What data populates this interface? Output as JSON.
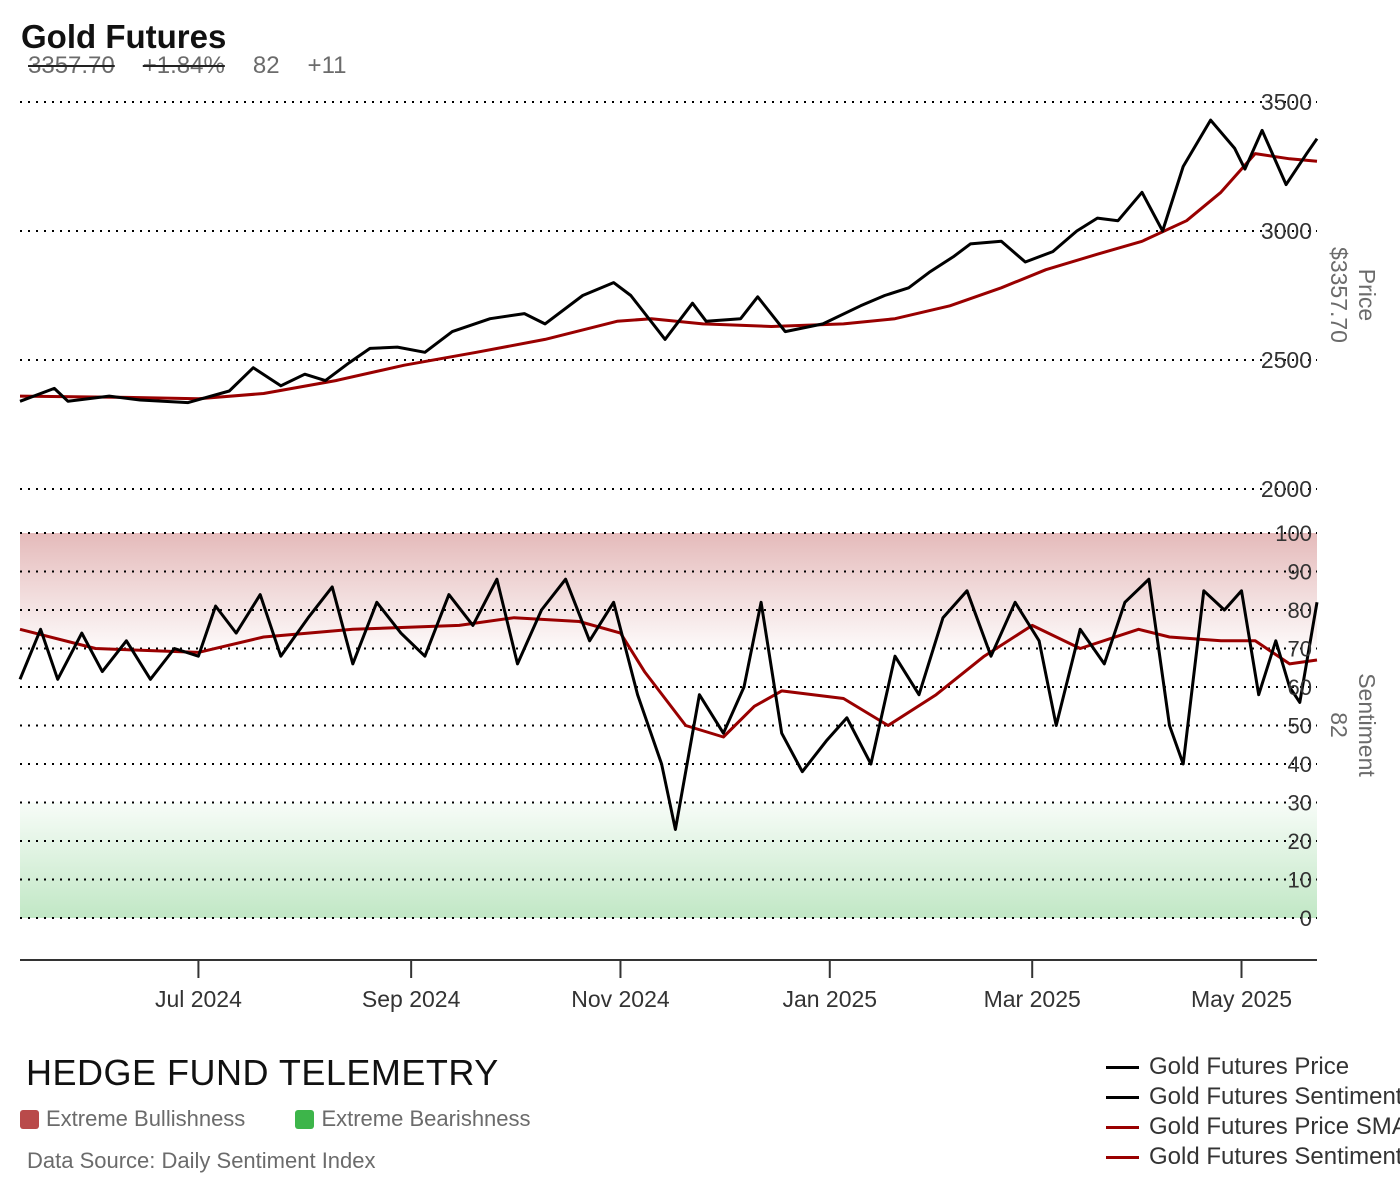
{
  "header": {
    "title": "Gold Futures",
    "price": "3357.70",
    "change": "+1.84%",
    "sentiment": "82",
    "sentiment_change": "+11"
  },
  "footer": {
    "brand": "HEDGE FUND TELEMETRY",
    "zone_bull_label": "Extreme Bullishness",
    "zone_bear_label": "Extreme Bearishness",
    "source": "Data Source: Daily Sentiment Index"
  },
  "legend": [
    {
      "label": "Gold Futures Price",
      "color": "#000000"
    },
    {
      "label": "Gold Futures Sentiment",
      "color": "#000000"
    },
    {
      "label": "Gold Futures Price SMA",
      "color": "#990000"
    },
    {
      "label": "Gold Futures Sentiment SMA",
      "color": "#990000"
    }
  ],
  "colors": {
    "price": "#000000",
    "sentiment": "#000000",
    "sma": "#990000",
    "bull_zone": "#b94a4a",
    "bear_zone": "#3db54a"
  },
  "chart_data": {
    "type": "line",
    "x_start": "2024-05-10",
    "x_end": "2025-05-23",
    "x_ticks": [
      "Jul 2024",
      "Sep 2024",
      "Nov 2024",
      "Jan 2025",
      "Mar 2025",
      "May 2025"
    ],
    "x_tick_dates": [
      "2024-07-01",
      "2024-09-01",
      "2024-11-01",
      "2025-01-01",
      "2025-03-01",
      "2025-05-01"
    ],
    "price_panel": {
      "ylabel": "Price",
      "last_value_label": "$3357.70",
      "ylim": [
        2000,
        3500
      ],
      "yticks": [
        2000,
        2500,
        3000,
        3500
      ],
      "series": [
        {
          "name": "Gold Futures Price",
          "color": "#000000",
          "points": [
            [
              "2024-05-10",
              2340
            ],
            [
              "2024-05-20",
              2390
            ],
            [
              "2024-05-24",
              2340
            ],
            [
              "2024-06-05",
              2360
            ],
            [
              "2024-06-14",
              2345
            ],
            [
              "2024-06-28",
              2335
            ],
            [
              "2024-07-10",
              2380
            ],
            [
              "2024-07-17",
              2470
            ],
            [
              "2024-07-25",
              2400
            ],
            [
              "2024-08-01",
              2445
            ],
            [
              "2024-08-07",
              2420
            ],
            [
              "2024-08-14",
              2490
            ],
            [
              "2024-08-20",
              2545
            ],
            [
              "2024-08-28",
              2550
            ],
            [
              "2024-09-05",
              2530
            ],
            [
              "2024-09-13",
              2610
            ],
            [
              "2024-09-24",
              2660
            ],
            [
              "2024-10-04",
              2680
            ],
            [
              "2024-10-10",
              2640
            ],
            [
              "2024-10-21",
              2750
            ],
            [
              "2024-10-30",
              2800
            ],
            [
              "2024-11-04",
              2750
            ],
            [
              "2024-11-14",
              2580
            ],
            [
              "2024-11-22",
              2720
            ],
            [
              "2024-11-26",
              2650
            ],
            [
              "2024-12-06",
              2660
            ],
            [
              "2024-12-11",
              2745
            ],
            [
              "2024-12-19",
              2610
            ],
            [
              "2024-12-30",
              2640
            ],
            [
              "2025-01-10",
              2710
            ],
            [
              "2025-01-17",
              2750
            ],
            [
              "2025-01-24",
              2780
            ],
            [
              "2025-01-30",
              2840
            ],
            [
              "2025-02-06",
              2900
            ],
            [
              "2025-02-11",
              2950
            ],
            [
              "2025-02-20",
              2960
            ],
            [
              "2025-02-27",
              2880
            ],
            [
              "2025-03-07",
              2920
            ],
            [
              "2025-03-14",
              3000
            ],
            [
              "2025-03-20",
              3050
            ],
            [
              "2025-03-26",
              3040
            ],
            [
              "2025-04-02",
              3150
            ],
            [
              "2025-04-08",
              3000
            ],
            [
              "2025-04-14",
              3250
            ],
            [
              "2025-04-22",
              3430
            ],
            [
              "2025-04-29",
              3320
            ],
            [
              "2025-05-02",
              3240
            ],
            [
              "2025-05-07",
              3390
            ],
            [
              "2025-05-14",
              3180
            ],
            [
              "2025-05-20",
              3300
            ],
            [
              "2025-05-23",
              3357.7
            ]
          ]
        },
        {
          "name": "Gold Futures Price SMA",
          "color": "#990000",
          "points": [
            [
              "2024-05-10",
              2360
            ],
            [
              "2024-06-10",
              2355
            ],
            [
              "2024-07-01",
              2350
            ],
            [
              "2024-07-20",
              2370
            ],
            [
              "2024-08-10",
              2420
            ],
            [
              "2024-08-30",
              2480
            ],
            [
              "2024-09-20",
              2530
            ],
            [
              "2024-10-10",
              2580
            ],
            [
              "2024-10-31",
              2650
            ],
            [
              "2024-11-10",
              2660
            ],
            [
              "2024-11-25",
              2640
            ],
            [
              "2024-12-15",
              2630
            ],
            [
              "2025-01-05",
              2640
            ],
            [
              "2025-01-20",
              2660
            ],
            [
              "2025-02-05",
              2710
            ],
            [
              "2025-02-20",
              2780
            ],
            [
              "2025-03-05",
              2850
            ],
            [
              "2025-03-20",
              2910
            ],
            [
              "2025-04-02",
              2960
            ],
            [
              "2025-04-15",
              3040
            ],
            [
              "2025-04-25",
              3150
            ],
            [
              "2025-05-05",
              3300
            ],
            [
              "2025-05-15",
              3280
            ],
            [
              "2025-05-23",
              3270
            ]
          ]
        }
      ]
    },
    "sentiment_panel": {
      "ylabel": "Sentiment",
      "last_value_label": "82",
      "ylim": [
        0,
        100
      ],
      "yticks": [
        0,
        10,
        20,
        30,
        40,
        50,
        60,
        70,
        80,
        90,
        100
      ],
      "bull_zone": [
        70,
        100
      ],
      "bear_zone": [
        0,
        30
      ],
      "series": [
        {
          "name": "Gold Futures Sentiment",
          "color": "#000000",
          "points": [
            [
              "2024-05-10",
              62
            ],
            [
              "2024-05-16",
              75
            ],
            [
              "2024-05-21",
              62
            ],
            [
              "2024-05-28",
              74
            ],
            [
              "2024-06-03",
              64
            ],
            [
              "2024-06-10",
              72
            ],
            [
              "2024-06-17",
              62
            ],
            [
              "2024-06-24",
              70
            ],
            [
              "2024-07-01",
              68
            ],
            [
              "2024-07-06",
              81
            ],
            [
              "2024-07-12",
              74
            ],
            [
              "2024-07-19",
              84
            ],
            [
              "2024-07-25",
              68
            ],
            [
              "2024-08-02",
              78
            ],
            [
              "2024-08-09",
              86
            ],
            [
              "2024-08-15",
              66
            ],
            [
              "2024-08-22",
              82
            ],
            [
              "2024-08-29",
              74
            ],
            [
              "2024-09-05",
              68
            ],
            [
              "2024-09-12",
              84
            ],
            [
              "2024-09-19",
              76
            ],
            [
              "2024-09-26",
              88
            ],
            [
              "2024-10-02",
              66
            ],
            [
              "2024-10-09",
              80
            ],
            [
              "2024-10-16",
              88
            ],
            [
              "2024-10-23",
              72
            ],
            [
              "2024-10-30",
              82
            ],
            [
              "2024-11-06",
              58
            ],
            [
              "2024-11-13",
              40
            ],
            [
              "2024-11-17",
              23
            ],
            [
              "2024-11-24",
              58
            ],
            [
              "2024-12-01",
              48
            ],
            [
              "2024-12-07",
              60
            ],
            [
              "2024-12-12",
              82
            ],
            [
              "2024-12-18",
              48
            ],
            [
              "2024-12-24",
              38
            ],
            [
              "2024-12-31",
              46
            ],
            [
              "2025-01-06",
              52
            ],
            [
              "2025-01-13",
              40
            ],
            [
              "2025-01-20",
              68
            ],
            [
              "2025-01-27",
              58
            ],
            [
              "2025-02-03",
              78
            ],
            [
              "2025-02-10",
              85
            ],
            [
              "2025-02-17",
              68
            ],
            [
              "2025-02-24",
              82
            ],
            [
              "2025-03-03",
              72
            ],
            [
              "2025-03-08",
              50
            ],
            [
              "2025-03-15",
              75
            ],
            [
              "2025-03-22",
              66
            ],
            [
              "2025-03-28",
              82
            ],
            [
              "2025-04-04",
              88
            ],
            [
              "2025-04-10",
              50
            ],
            [
              "2025-04-14",
              40
            ],
            [
              "2025-04-20",
              85
            ],
            [
              "2025-04-26",
              80
            ],
            [
              "2025-05-01",
              85
            ],
            [
              "2025-05-06",
              58
            ],
            [
              "2025-05-11",
              72
            ],
            [
              "2025-05-15",
              60
            ],
            [
              "2025-05-18",
              56
            ],
            [
              "2025-05-23",
              82
            ]
          ]
        },
        {
          "name": "Gold Futures Sentiment SMA",
          "color": "#990000",
          "points": [
            [
              "2024-05-10",
              75
            ],
            [
              "2024-06-01",
              70
            ],
            [
              "2024-07-01",
              69
            ],
            [
              "2024-07-20",
              73
            ],
            [
              "2024-08-15",
              75
            ],
            [
              "2024-09-15",
              76
            ],
            [
              "2024-10-01",
              78
            ],
            [
              "2024-10-20",
              77
            ],
            [
              "2024-11-01",
              74
            ],
            [
              "2024-11-08",
              64
            ],
            [
              "2024-11-20",
              50
            ],
            [
              "2024-12-01",
              47
            ],
            [
              "2024-12-10",
              55
            ],
            [
              "2024-12-18",
              59
            ],
            [
              "2025-01-05",
              57
            ],
            [
              "2025-01-18",
              50
            ],
            [
              "2025-02-01",
              58
            ],
            [
              "2025-02-15",
              68
            ],
            [
              "2025-03-01",
              76
            ],
            [
              "2025-03-15",
              70
            ],
            [
              "2025-04-01",
              75
            ],
            [
              "2025-04-10",
              73
            ],
            [
              "2025-04-25",
              72
            ],
            [
              "2025-05-05",
              72
            ],
            [
              "2025-05-15",
              66
            ],
            [
              "2025-05-23",
              67
            ]
          ]
        }
      ]
    }
  }
}
